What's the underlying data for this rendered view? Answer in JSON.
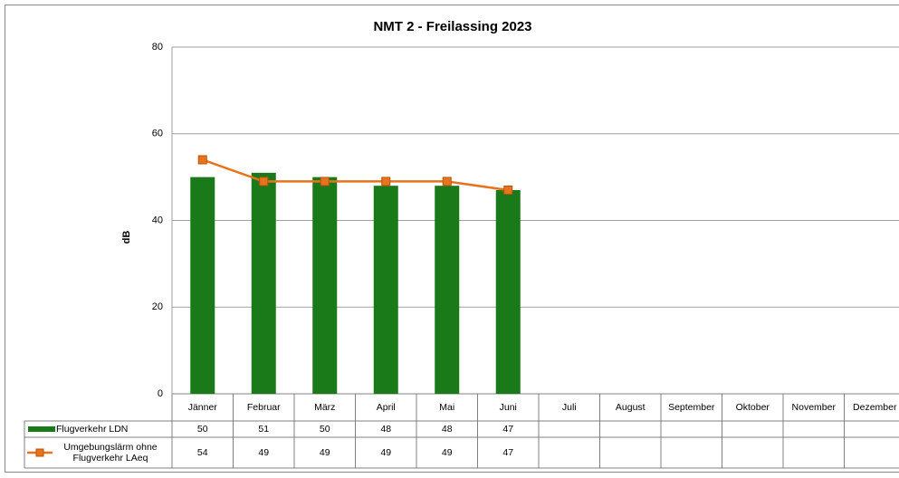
{
  "chart_data": {
    "type": "bar-line",
    "title": "NMT 2 - Freilassing 2023",
    "y_label": "dB",
    "categories": [
      "Jänner",
      "Februar",
      "März",
      "April",
      "Mai",
      "Juni",
      "Juli",
      "August",
      "September",
      "Oktober",
      "November",
      "Dezember"
    ],
    "series": [
      {
        "name": "Flugverkehr LDN",
        "type": "bar",
        "color": "#1a7a1a",
        "values": [
          50,
          51,
          50,
          48,
          48,
          47,
          null,
          null,
          null,
          null,
          null,
          null
        ]
      },
      {
        "name": "Umgebungslärm ohne Flugverkehr LAeq",
        "type": "line",
        "color": "#e8731e",
        "values": [
          54,
          49,
          49,
          49,
          49,
          47,
          null,
          null,
          null,
          null,
          null,
          null
        ]
      }
    ],
    "ylim": [
      0,
      80
    ],
    "yticks": [
      0,
      20,
      40,
      60,
      80
    ],
    "grid": true,
    "data_table": true
  }
}
